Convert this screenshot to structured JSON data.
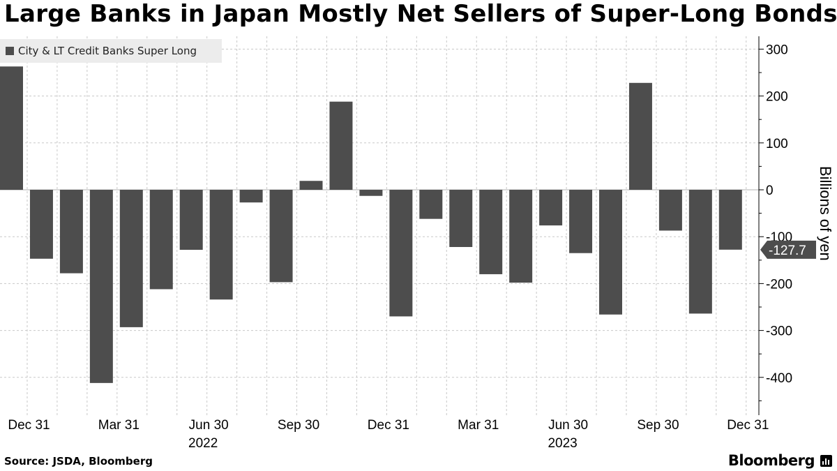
{
  "header": {
    "title": "Large Banks in Japan Mostly Net Sellers of Super-Long Bonds"
  },
  "legend": {
    "label": "City & LT Credit Banks Super Long"
  },
  "footer": {
    "source": "Source: JSDA, Bloomberg",
    "brand": "Bloomberg"
  },
  "chart_data": {
    "type": "bar",
    "title": "Large Banks in Japan Mostly Net Sellers of Super-Long Bonds",
    "series": [
      {
        "name": "City & LT Credit Banks Super Long",
        "values": [
          263,
          -147,
          -178,
          -412,
          -293,
          -212,
          -128,
          -234,
          -27,
          -197,
          19,
          188,
          -13,
          -270,
          -62,
          -122,
          -180,
          -198,
          -76,
          -135,
          -266,
          228,
          -87,
          -264,
          -127.7
        ]
      }
    ],
    "x_tick_labels": [
      "Dec 31",
      "Mar 31",
      "Jun 30",
      "Sep 30",
      "Dec 31",
      "Mar 31",
      "Jun 30",
      "Sep 30",
      "Dec 31"
    ],
    "year_labels": [
      "2022",
      "2023"
    ],
    "ylabel": "Billions of yen",
    "yticks": [
      300,
      200,
      100,
      0,
      -100,
      -200,
      -300,
      -400
    ],
    "ytick_labels": [
      "300",
      "200",
      "100",
      "0",
      "-100",
      "-200",
      "-300",
      "-400"
    ],
    "ylim": [
      -475,
      320
    ],
    "last_value_label": "-127.7",
    "colors": {
      "bar": "#4d4d4d",
      "grid": "#c8c8c8"
    }
  }
}
